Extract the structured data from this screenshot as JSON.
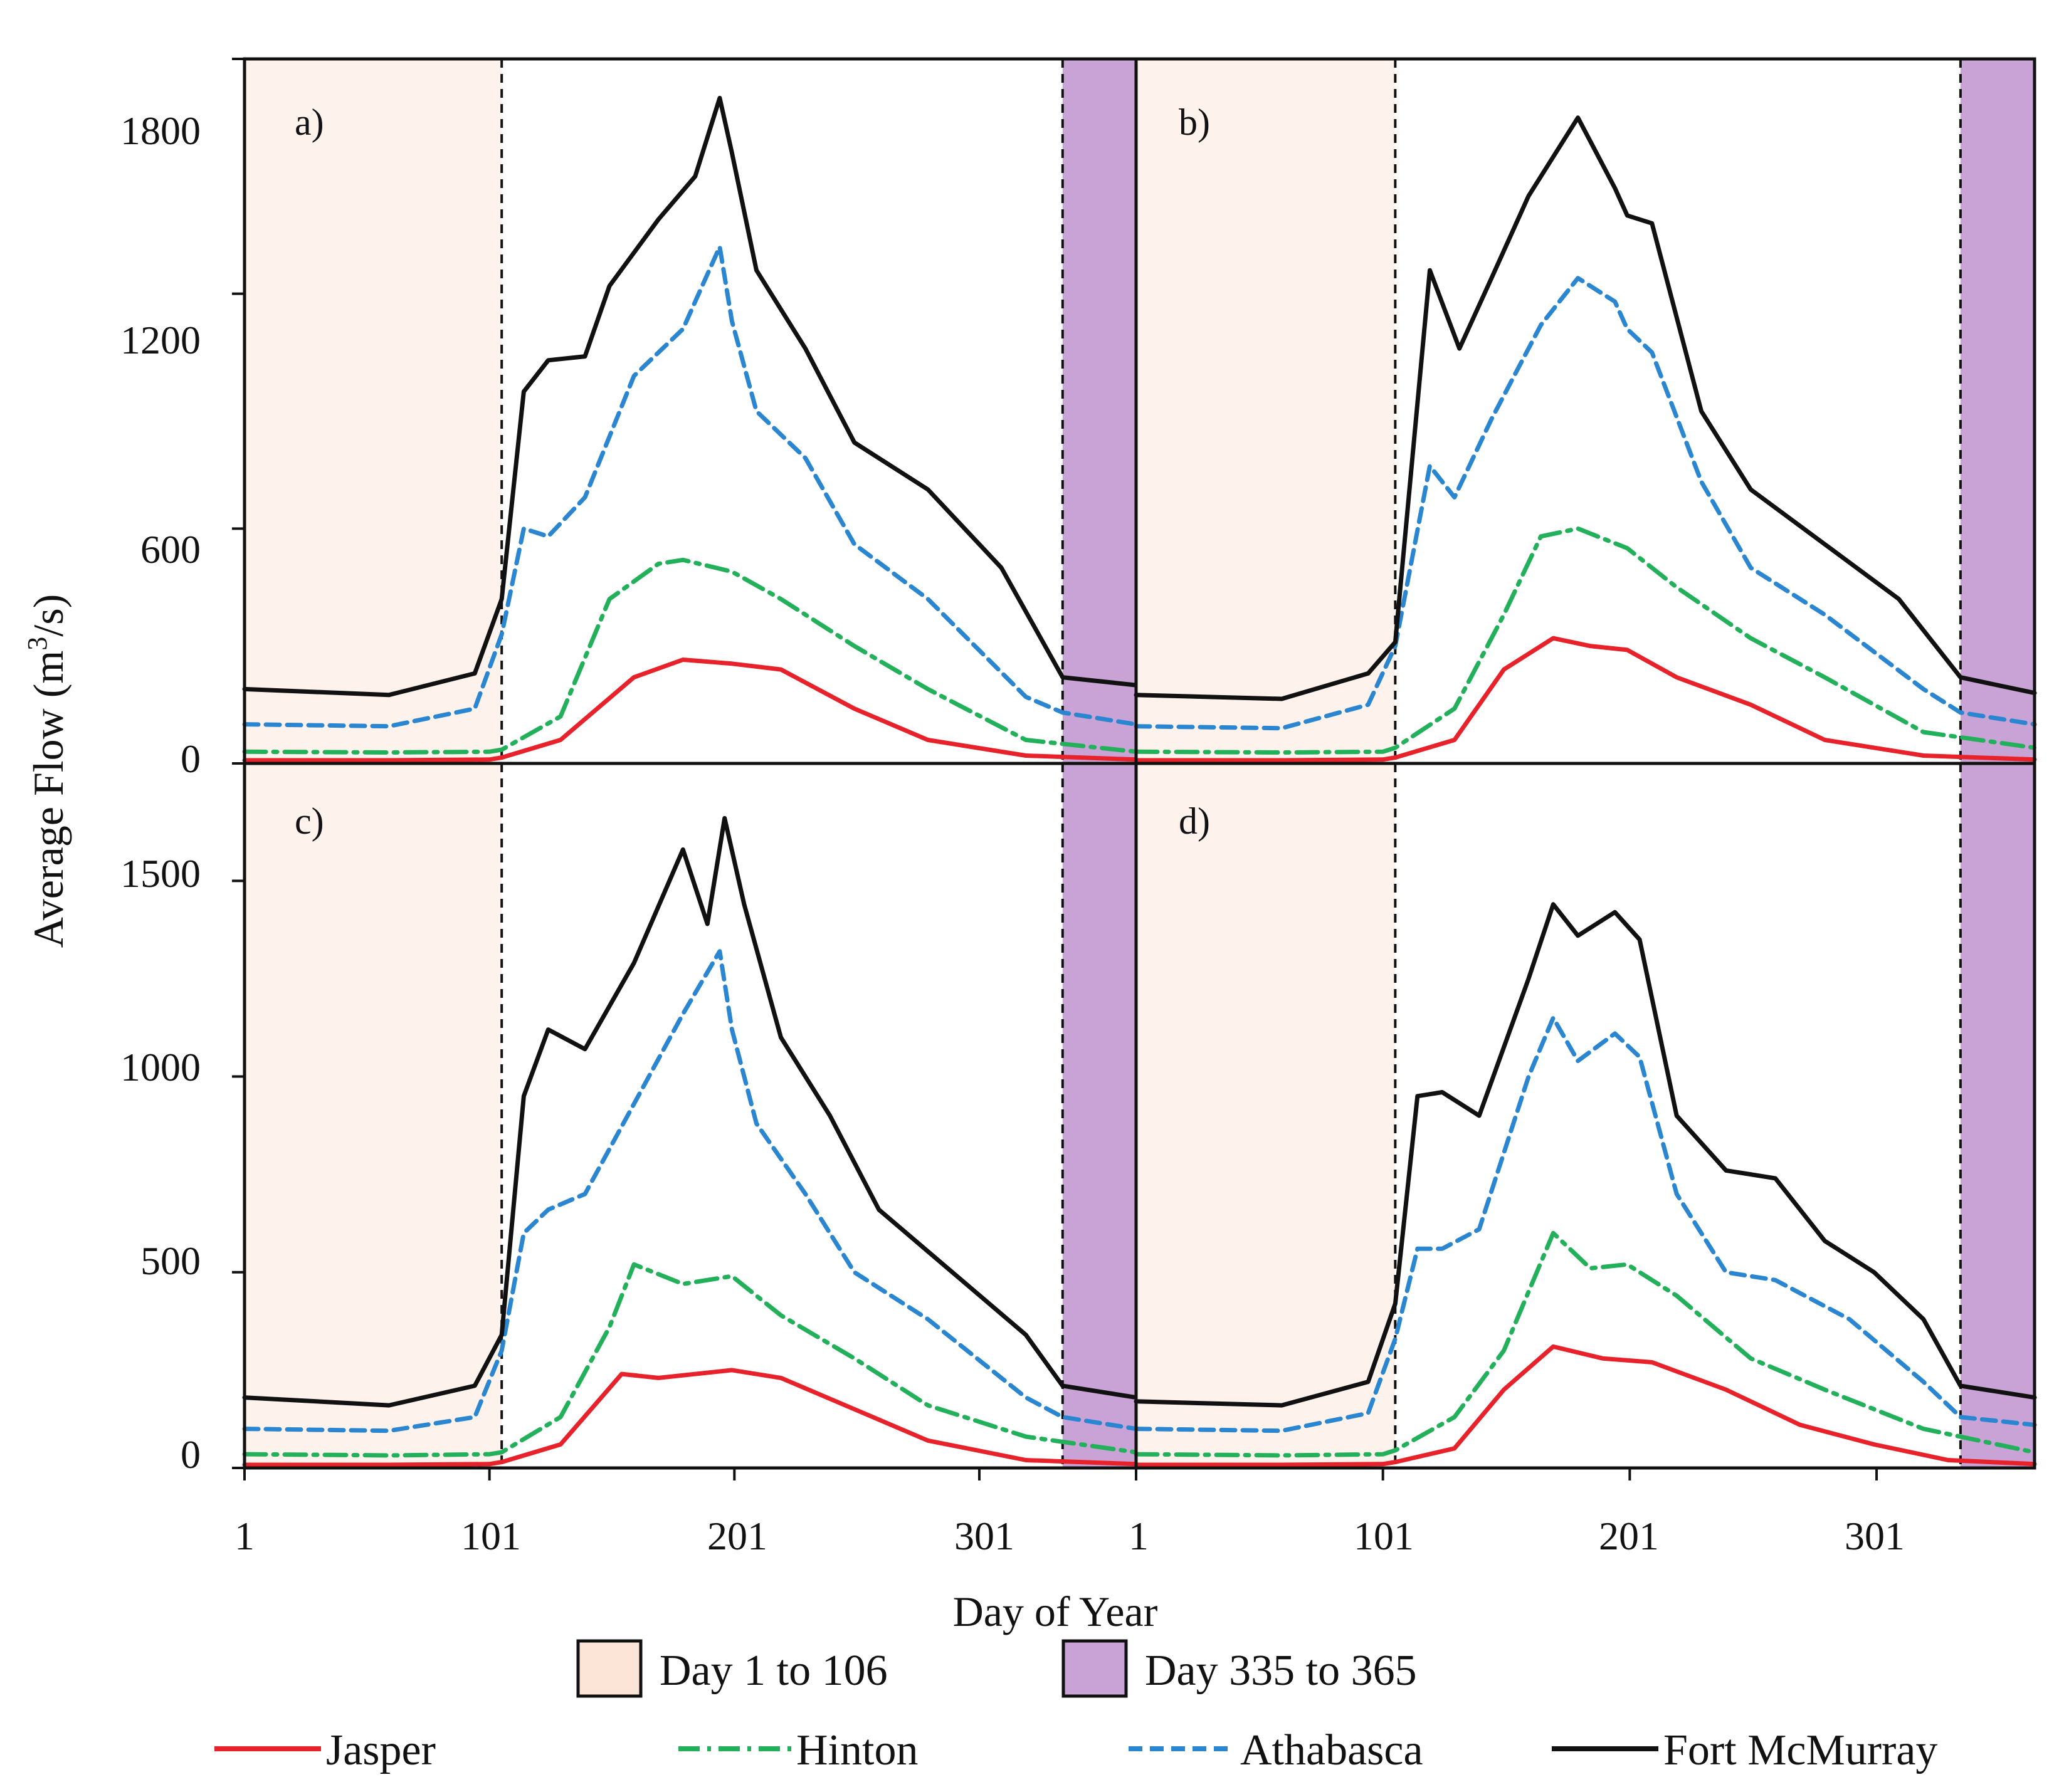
{
  "chart_data": {
    "type": "line",
    "xlabel": "Day of Year",
    "ylabel": "Average Flow (m³/s)",
    "ylabel_parts": {
      "before": "Average Flow (m",
      "superscript": "3",
      "after": "/s)"
    },
    "x_range": [
      1,
      365
    ],
    "x_ticks": [
      1,
      101,
      201,
      301
    ],
    "x_tick_labels": [
      "1",
      "101",
      "201",
      "301"
    ],
    "top_row": {
      "y_range": [
        0,
        1800
      ],
      "y_ticks": [
        0,
        600,
        1200,
        1800
      ]
    },
    "bottom_row": {
      "y_range": [
        0,
        1800
      ],
      "y_ticks": [
        0,
        500,
        1000,
        1500
      ]
    },
    "shaded_periods": [
      {
        "label": "Day 1 to 106",
        "start": 1,
        "end": 106,
        "color": "#fdf2ec",
        "swatch": "#fce4d6"
      },
      {
        "label": "Day 335 to 365",
        "start": 335,
        "end": 365,
        "color": "#c9a3d5",
        "swatch": "#c9a3d5"
      }
    ],
    "series_styles": [
      {
        "name": "Jasper",
        "color": "#e8222b",
        "dash": "none"
      },
      {
        "name": "Hinton",
        "color": "#22b05a",
        "dash": "dashdot"
      },
      {
        "name": "Athabasca",
        "color": "#2a86d0",
        "dash": "dashed"
      },
      {
        "name": "Fort McMurray",
        "color": "#111111",
        "dash": "none"
      }
    ],
    "panels": [
      {
        "label": "a)",
        "series": [
          {
            "name": "Jasper",
            "x": [
              1,
              60,
              101,
              106,
              130,
              160,
              180,
              200,
              220,
              250,
              280,
              320,
              365
            ],
            "y": [
              8,
              8,
              10,
              15,
              60,
              220,
              265,
              255,
              240,
              140,
              60,
              20,
              10
            ]
          },
          {
            "name": "Hinton",
            "x": [
              1,
              60,
              101,
              106,
              130,
              150,
              170,
              180,
              200,
              220,
              250,
              280,
              320,
              365
            ],
            "y": [
              30,
              28,
              30,
              35,
              120,
              420,
              510,
              520,
              490,
              420,
              300,
              190,
              60,
              30
            ]
          },
          {
            "name": "Athabasca",
            "x": [
              1,
              60,
              95,
              106,
              115,
              125,
              140,
              160,
              180,
              195,
              200,
              210,
              230,
              250,
              280,
              320,
              335,
              365
            ],
            "y": [
              100,
              95,
              140,
              330,
              600,
              580,
              680,
              990,
              1110,
              1320,
              1130,
              900,
              780,
              560,
              420,
              170,
              130,
              100
            ]
          },
          {
            "name": "Fort McMurray",
            "x": [
              1,
              60,
              95,
              106,
              115,
              125,
              140,
              150,
              170,
              185,
              195,
              200,
              210,
              230,
              250,
              280,
              310,
              335,
              365
            ],
            "y": [
              190,
              175,
              230,
              420,
              950,
              1030,
              1040,
              1220,
              1390,
              1500,
              1700,
              1560,
              1260,
              1060,
              820,
              700,
              500,
              220,
              200
            ]
          }
        ]
      },
      {
        "label": "b)",
        "series": [
          {
            "name": "Jasper",
            "x": [
              1,
              60,
              101,
              106,
              130,
              150,
              170,
              185,
              200,
              220,
              250,
              280,
              320,
              365
            ],
            "y": [
              8,
              8,
              10,
              15,
              60,
              240,
              320,
              300,
              290,
              220,
              150,
              60,
              20,
              10
            ]
          },
          {
            "name": "Hinton",
            "x": [
              1,
              60,
              101,
              106,
              130,
              150,
              165,
              180,
              200,
              220,
              250,
              280,
              320,
              365
            ],
            "y": [
              30,
              28,
              30,
              40,
              140,
              380,
              580,
              600,
              550,
              450,
              320,
              220,
              80,
              40
            ]
          },
          {
            "name": "Athabasca",
            "x": [
              1,
              60,
              95,
              106,
              120,
              130,
              145,
              165,
              180,
              195,
              200,
              210,
              230,
              250,
              280,
              320,
              335,
              365
            ],
            "y": [
              95,
              90,
              150,
              300,
              760,
              680,
              880,
              1120,
              1240,
              1180,
              1110,
              1050,
              720,
              500,
              380,
              190,
              130,
              100
            ]
          },
          {
            "name": "Fort McMurray",
            "x": [
              1,
              60,
              95,
              106,
              120,
              132,
              145,
              160,
              180,
              195,
              200,
              210,
              230,
              250,
              280,
              310,
              335,
              365
            ],
            "y": [
              175,
              165,
              230,
              310,
              1260,
              1060,
              1240,
              1450,
              1650,
              1470,
              1400,
              1380,
              900,
              700,
              560,
              420,
              220,
              180
            ]
          }
        ]
      },
      {
        "label": "c)",
        "series": [
          {
            "name": "Jasper",
            "x": [
              1,
              60,
              101,
              106,
              130,
              155,
              170,
              200,
              220,
              250,
              280,
              320,
              365
            ],
            "y": [
              8,
              8,
              10,
              15,
              60,
              240,
              230,
              250,
              230,
              150,
              70,
              20,
              10
            ]
          },
          {
            "name": "Hinton",
            "x": [
              1,
              60,
              101,
              106,
              130,
              150,
              160,
              180,
              200,
              220,
              250,
              280,
              320,
              365
            ],
            "y": [
              35,
              32,
              35,
              40,
              130,
              360,
              520,
              470,
              490,
              390,
              280,
              160,
              80,
              40
            ]
          },
          {
            "name": "Athabasca",
            "x": [
              1,
              60,
              95,
              106,
              115,
              125,
              140,
              160,
              180,
              195,
              200,
              210,
              230,
              250,
              280,
              320,
              335,
              365
            ],
            "y": [
              100,
              95,
              130,
              300,
              600,
              660,
              700,
              930,
              1160,
              1320,
              1120,
              880,
              700,
              500,
              380,
              180,
              130,
              100
            ]
          },
          {
            "name": "Fort McMurray",
            "x": [
              1,
              60,
              95,
              106,
              115,
              125,
              140,
              160,
              180,
              190,
              197,
              205,
              220,
              240,
              260,
              290,
              320,
              335,
              365
            ],
            "y": [
              180,
              160,
              210,
              340,
              950,
              1120,
              1070,
              1290,
              1580,
              1390,
              1660,
              1440,
              1100,
              900,
              660,
              500,
              340,
              210,
              180
            ]
          }
        ]
      },
      {
        "label": "d)",
        "series": [
          {
            "name": "Jasper",
            "x": [
              1,
              60,
              101,
              106,
              130,
              150,
              170,
              190,
              210,
              240,
              270,
              300,
              330,
              365
            ],
            "y": [
              8,
              8,
              10,
              15,
              50,
              200,
              310,
              280,
              270,
              200,
              110,
              60,
              20,
              10
            ]
          },
          {
            "name": "Hinton",
            "x": [
              1,
              60,
              101,
              106,
              130,
              150,
              170,
              185,
              200,
              220,
              250,
              280,
              320,
              365
            ],
            "y": [
              35,
              32,
              35,
              45,
              130,
              300,
              600,
              510,
              520,
              440,
              280,
              200,
              100,
              40
            ]
          },
          {
            "name": "Athabasca",
            "x": [
              1,
              60,
              95,
              106,
              115,
              125,
              140,
              160,
              170,
              180,
              195,
              205,
              220,
              240,
              260,
              290,
              320,
              335,
              365
            ],
            "y": [
              100,
              95,
              140,
              330,
              560,
              560,
              610,
              1000,
              1150,
              1040,
              1110,
              1050,
              700,
              500,
              480,
              380,
              220,
              130,
              110
            ]
          },
          {
            "name": "Fort McMurray",
            "x": [
              1,
              60,
              95,
              106,
              115,
              125,
              140,
              160,
              170,
              180,
              195,
              205,
              220,
              240,
              260,
              280,
              300,
              320,
              335,
              365
            ],
            "y": [
              170,
              160,
              220,
              420,
              950,
              960,
              900,
              1250,
              1440,
              1360,
              1420,
              1350,
              900,
              760,
              740,
              580,
              500,
              380,
              210,
              180
            ]
          }
        ]
      }
    ]
  }
}
